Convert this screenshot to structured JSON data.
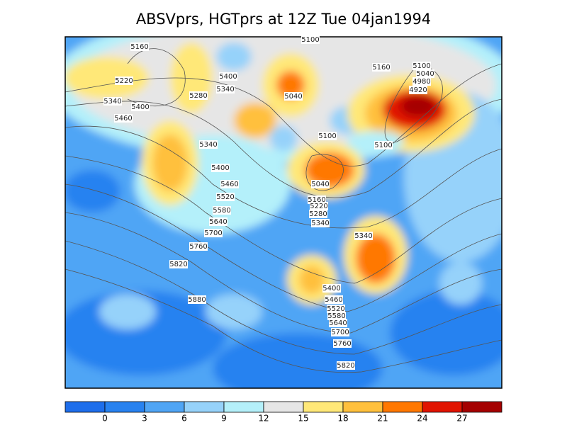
{
  "title": "ABSVprs, HGTprs at 12Z Tue 04jan1994",
  "contour_labels": [
    "5160",
    "5100",
    "5220",
    "5400",
    "5340",
    "5280",
    "5040",
    "5160",
    "5100",
    "5040",
    "4980",
    "4920",
    "5340",
    "5400",
    "5460",
    "5100",
    "5100",
    "5340",
    "5400",
    "5040",
    "5460",
    "5520",
    "5160",
    "5220",
    "5580",
    "5280",
    "5640",
    "5340",
    "5700",
    "5340",
    "5760",
    "5820",
    "5400",
    "5880",
    "5460",
    "5520",
    "5580",
    "5640",
    "5700",
    "5760",
    "5820"
  ],
  "colorbar": {
    "colors": [
      "#1e6eeb",
      "#2882f0",
      "#50a5f5",
      "#96d2fa",
      "#b4f0fa",
      "#e6e6e6",
      "#ffe878",
      "#ffc03c",
      "#ff7800",
      "#e11400",
      "#a50000"
    ],
    "ticks": [
      0,
      3,
      6,
      9,
      12,
      15,
      18,
      21,
      24,
      27
    ]
  }
}
